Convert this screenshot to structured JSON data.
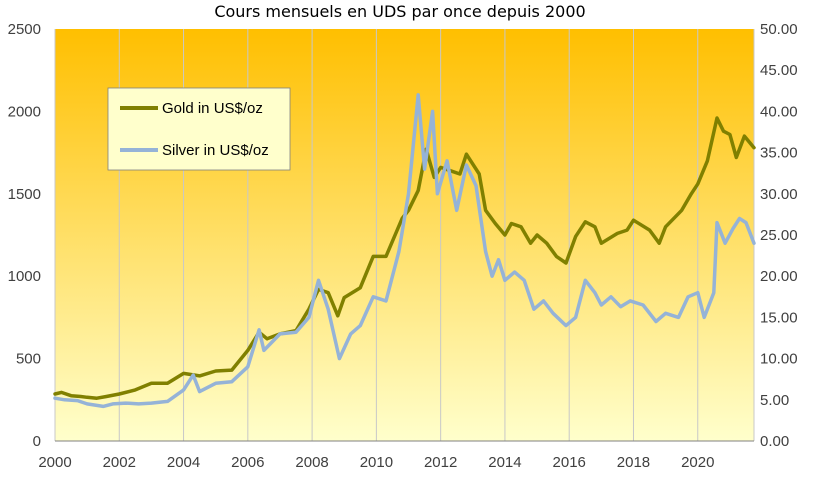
{
  "chart_data": {
    "type": "line",
    "title": "Cours mensuels en UDS par once depuis 2000",
    "xlabel": "",
    "ylabel": "",
    "x_ticks": [
      "2000",
      "2002",
      "2004",
      "2006",
      "2008",
      "2010",
      "2012",
      "2014",
      "2016",
      "2018",
      "2020"
    ],
    "xlim": [
      2000,
      2021.75
    ],
    "y_left_ticks": [
      "0",
      "500",
      "1000",
      "1500",
      "2000",
      "2500"
    ],
    "ylim_left": [
      0,
      2500
    ],
    "y_right_ticks": [
      "0.00",
      "5.00",
      "10.00",
      "15.00",
      "20.00",
      "25.00",
      "30.00",
      "35.00",
      "40.00",
      "45.00",
      "50.00"
    ],
    "ylim_right": [
      0,
      50
    ],
    "grid": "vertical",
    "legend_position": "top-left",
    "background_gradient": [
      "#FFBF00",
      "#FFFFCC"
    ],
    "series": [
      {
        "name": "Gold in US$/oz",
        "axis": "left",
        "color": "#808000",
        "points": [
          [
            2000.0,
            285
          ],
          [
            2000.2,
            295
          ],
          [
            2000.5,
            275
          ],
          [
            2000.8,
            270
          ],
          [
            2001.0,
            265
          ],
          [
            2001.3,
            260
          ],
          [
            2001.6,
            270
          ],
          [
            2002.0,
            285
          ],
          [
            2002.5,
            310
          ],
          [
            2003.0,
            350
          ],
          [
            2003.5,
            350
          ],
          [
            2004.0,
            410
          ],
          [
            2004.5,
            395
          ],
          [
            2005.0,
            425
          ],
          [
            2005.5,
            430
          ],
          [
            2006.0,
            550
          ],
          [
            2006.35,
            660
          ],
          [
            2006.6,
            620
          ],
          [
            2007.0,
            650
          ],
          [
            2007.5,
            670
          ],
          [
            2007.9,
            800
          ],
          [
            2008.2,
            920
          ],
          [
            2008.5,
            900
          ],
          [
            2008.8,
            760
          ],
          [
            2009.0,
            870
          ],
          [
            2009.5,
            930
          ],
          [
            2009.9,
            1120
          ],
          [
            2010.3,
            1120
          ],
          [
            2010.8,
            1350
          ],
          [
            2011.0,
            1400
          ],
          [
            2011.3,
            1520
          ],
          [
            2011.55,
            1770
          ],
          [
            2011.8,
            1600
          ],
          [
            2012.0,
            1660
          ],
          [
            2012.3,
            1640
          ],
          [
            2012.6,
            1620
          ],
          [
            2012.8,
            1740
          ],
          [
            2013.2,
            1620
          ],
          [
            2013.4,
            1400
          ],
          [
            2013.7,
            1320
          ],
          [
            2014.0,
            1250
          ],
          [
            2014.2,
            1320
          ],
          [
            2014.5,
            1300
          ],
          [
            2014.8,
            1200
          ],
          [
            2015.0,
            1250
          ],
          [
            2015.3,
            1200
          ],
          [
            2015.6,
            1120
          ],
          [
            2015.9,
            1080
          ],
          [
            2016.2,
            1240
          ],
          [
            2016.5,
            1330
          ],
          [
            2016.8,
            1300
          ],
          [
            2017.0,
            1200
          ],
          [
            2017.5,
            1260
          ],
          [
            2017.8,
            1280
          ],
          [
            2018.0,
            1340
          ],
          [
            2018.5,
            1280
          ],
          [
            2018.8,
            1200
          ],
          [
            2019.0,
            1300
          ],
          [
            2019.5,
            1400
          ],
          [
            2019.8,
            1500
          ],
          [
            2020.0,
            1560
          ],
          [
            2020.3,
            1700
          ],
          [
            2020.6,
            1960
          ],
          [
            2020.8,
            1880
          ],
          [
            2021.0,
            1860
          ],
          [
            2021.2,
            1720
          ],
          [
            2021.45,
            1850
          ],
          [
            2021.75,
            1780
          ]
        ]
      },
      {
        "name": "Silver in US$/oz",
        "axis": "right",
        "color": "#95B3D7",
        "points": [
          [
            2000.0,
            5.2
          ],
          [
            2000.3,
            5.0
          ],
          [
            2000.7,
            4.9
          ],
          [
            2001.0,
            4.5
          ],
          [
            2001.5,
            4.2
          ],
          [
            2001.8,
            4.5
          ],
          [
            2002.2,
            4.6
          ],
          [
            2002.6,
            4.5
          ],
          [
            2003.0,
            4.6
          ],
          [
            2003.5,
            4.8
          ],
          [
            2004.0,
            6.2
          ],
          [
            2004.3,
            8.0
          ],
          [
            2004.5,
            6.0
          ],
          [
            2005.0,
            7.0
          ],
          [
            2005.5,
            7.2
          ],
          [
            2006.0,
            9.0
          ],
          [
            2006.35,
            13.5
          ],
          [
            2006.5,
            11.0
          ],
          [
            2007.0,
            13.0
          ],
          [
            2007.5,
            13.2
          ],
          [
            2007.9,
            15.0
          ],
          [
            2008.2,
            19.5
          ],
          [
            2008.5,
            16.0
          ],
          [
            2008.85,
            10.0
          ],
          [
            2009.2,
            13.0
          ],
          [
            2009.5,
            14.0
          ],
          [
            2009.9,
            17.5
          ],
          [
            2010.3,
            17.0
          ],
          [
            2010.7,
            23.0
          ],
          [
            2011.0,
            30.0
          ],
          [
            2011.3,
            42.0
          ],
          [
            2011.5,
            33.0
          ],
          [
            2011.75,
            40.0
          ],
          [
            2011.9,
            30.0
          ],
          [
            2012.2,
            34.0
          ],
          [
            2012.5,
            28.0
          ],
          [
            2012.8,
            33.5
          ],
          [
            2013.1,
            31.0
          ],
          [
            2013.4,
            23.0
          ],
          [
            2013.6,
            20.0
          ],
          [
            2013.8,
            22.0
          ],
          [
            2014.0,
            19.5
          ],
          [
            2014.3,
            20.5
          ],
          [
            2014.6,
            19.5
          ],
          [
            2014.9,
            16.0
          ],
          [
            2015.2,
            17.0
          ],
          [
            2015.5,
            15.5
          ],
          [
            2015.9,
            14.0
          ],
          [
            2016.2,
            15.0
          ],
          [
            2016.5,
            19.5
          ],
          [
            2016.8,
            18.0
          ],
          [
            2017.0,
            16.5
          ],
          [
            2017.3,
            17.5
          ],
          [
            2017.6,
            16.3
          ],
          [
            2017.9,
            17.0
          ],
          [
            2018.3,
            16.5
          ],
          [
            2018.7,
            14.5
          ],
          [
            2019.0,
            15.5
          ],
          [
            2019.4,
            15.0
          ],
          [
            2019.7,
            17.5
          ],
          [
            2020.0,
            18.0
          ],
          [
            2020.2,
            15.0
          ],
          [
            2020.5,
            18.0
          ],
          [
            2020.6,
            26.5
          ],
          [
            2020.85,
            24.0
          ],
          [
            2021.1,
            25.8
          ],
          [
            2021.3,
            27.0
          ],
          [
            2021.5,
            26.5
          ],
          [
            2021.75,
            24.0
          ]
        ]
      }
    ]
  }
}
